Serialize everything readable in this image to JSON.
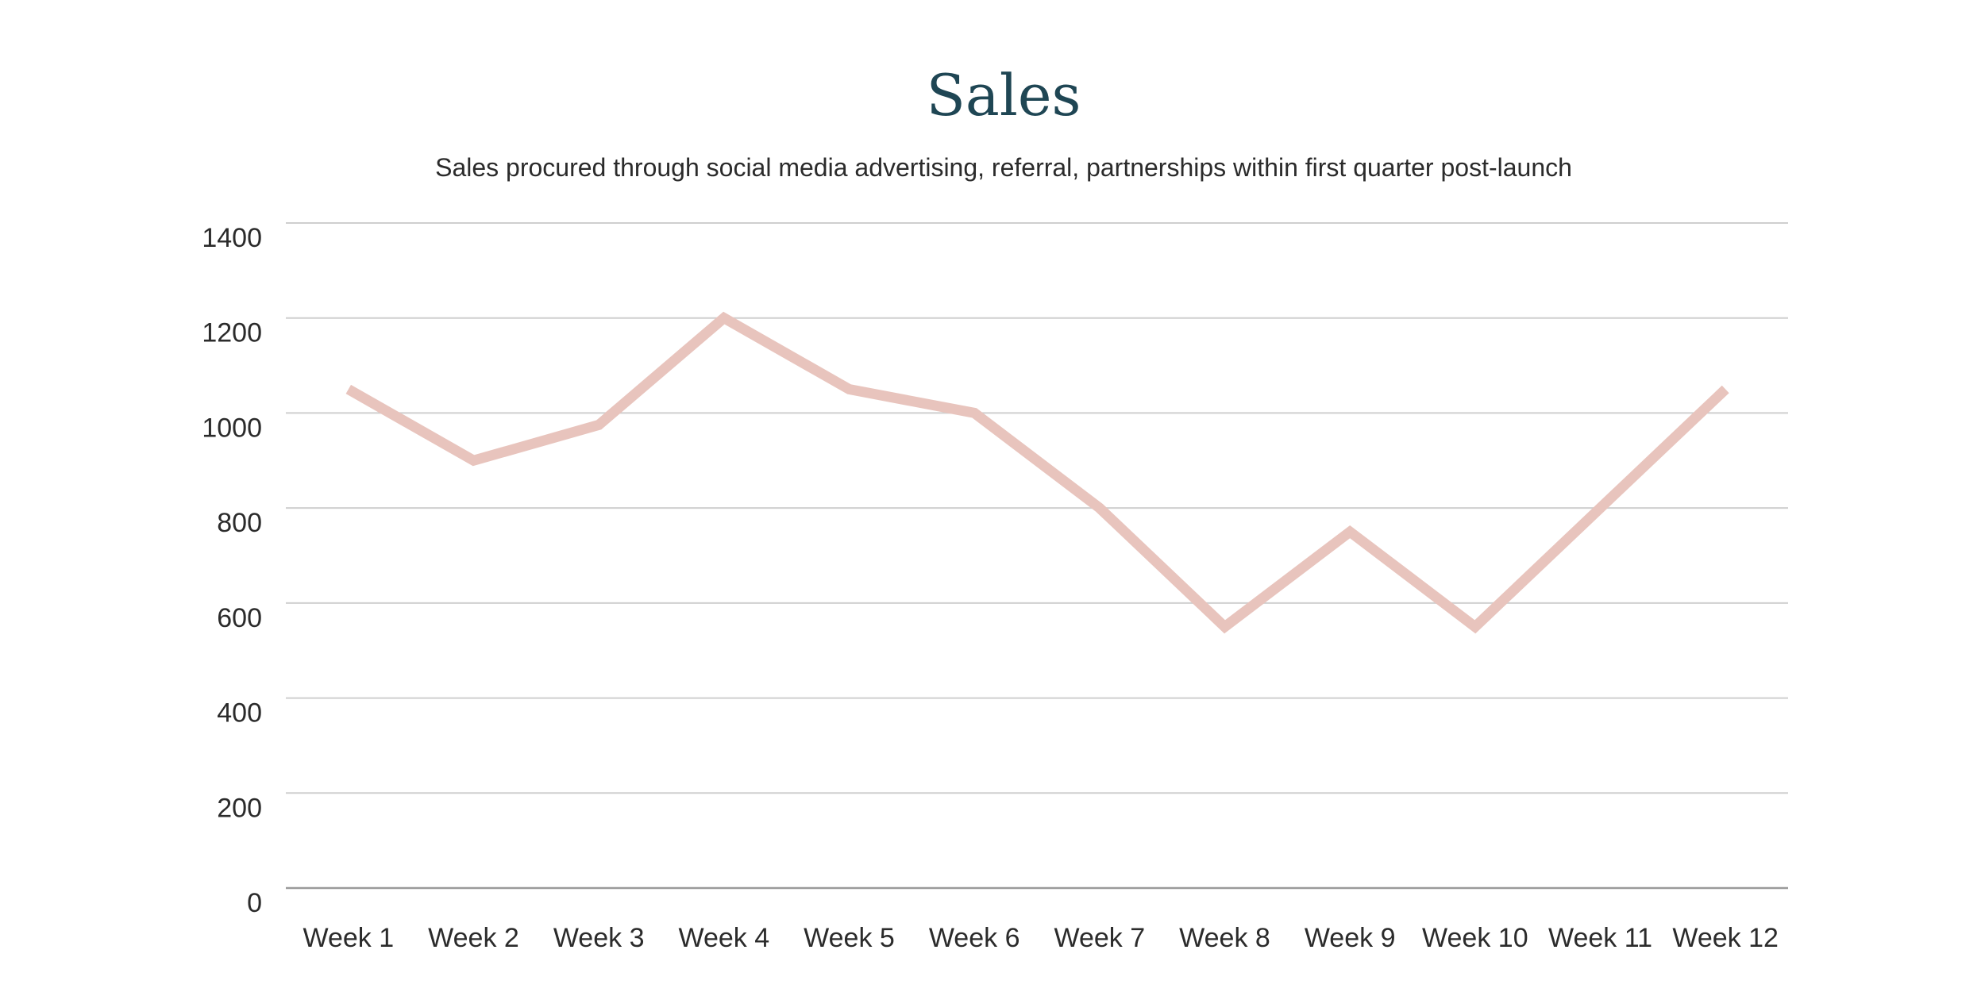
{
  "chart_data": {
    "type": "line",
    "title": "Sales",
    "subtitle": "Sales procured through social media advertising, referral, partnerships within first quarter post-launch",
    "categories": [
      "Week 1",
      "Week 2",
      "Week 3",
      "Week 4",
      "Week 5",
      "Week 6",
      "Week 7",
      "Week 8",
      "Week 9",
      "Week 10",
      "Week 11",
      "Week 12"
    ],
    "series": [
      {
        "name": "Sales",
        "values": [
          1050,
          900,
          975,
          1200,
          1050,
          1000,
          800,
          550,
          750,
          550,
          800,
          1050
        ],
        "color": "#e8c4bd"
      }
    ],
    "ylim": [
      0,
      1400
    ],
    "yticks": [
      "0",
      "200",
      "400",
      "600",
      "800",
      "1000",
      "1200",
      "1400"
    ],
    "grid": true,
    "legend": "none",
    "xlabel": "",
    "ylabel": ""
  },
  "colors": {
    "title": "#1f4654",
    "grid": "#cfcfcf",
    "axis": "#9a9a9a",
    "text": "#2b2b2b"
  }
}
